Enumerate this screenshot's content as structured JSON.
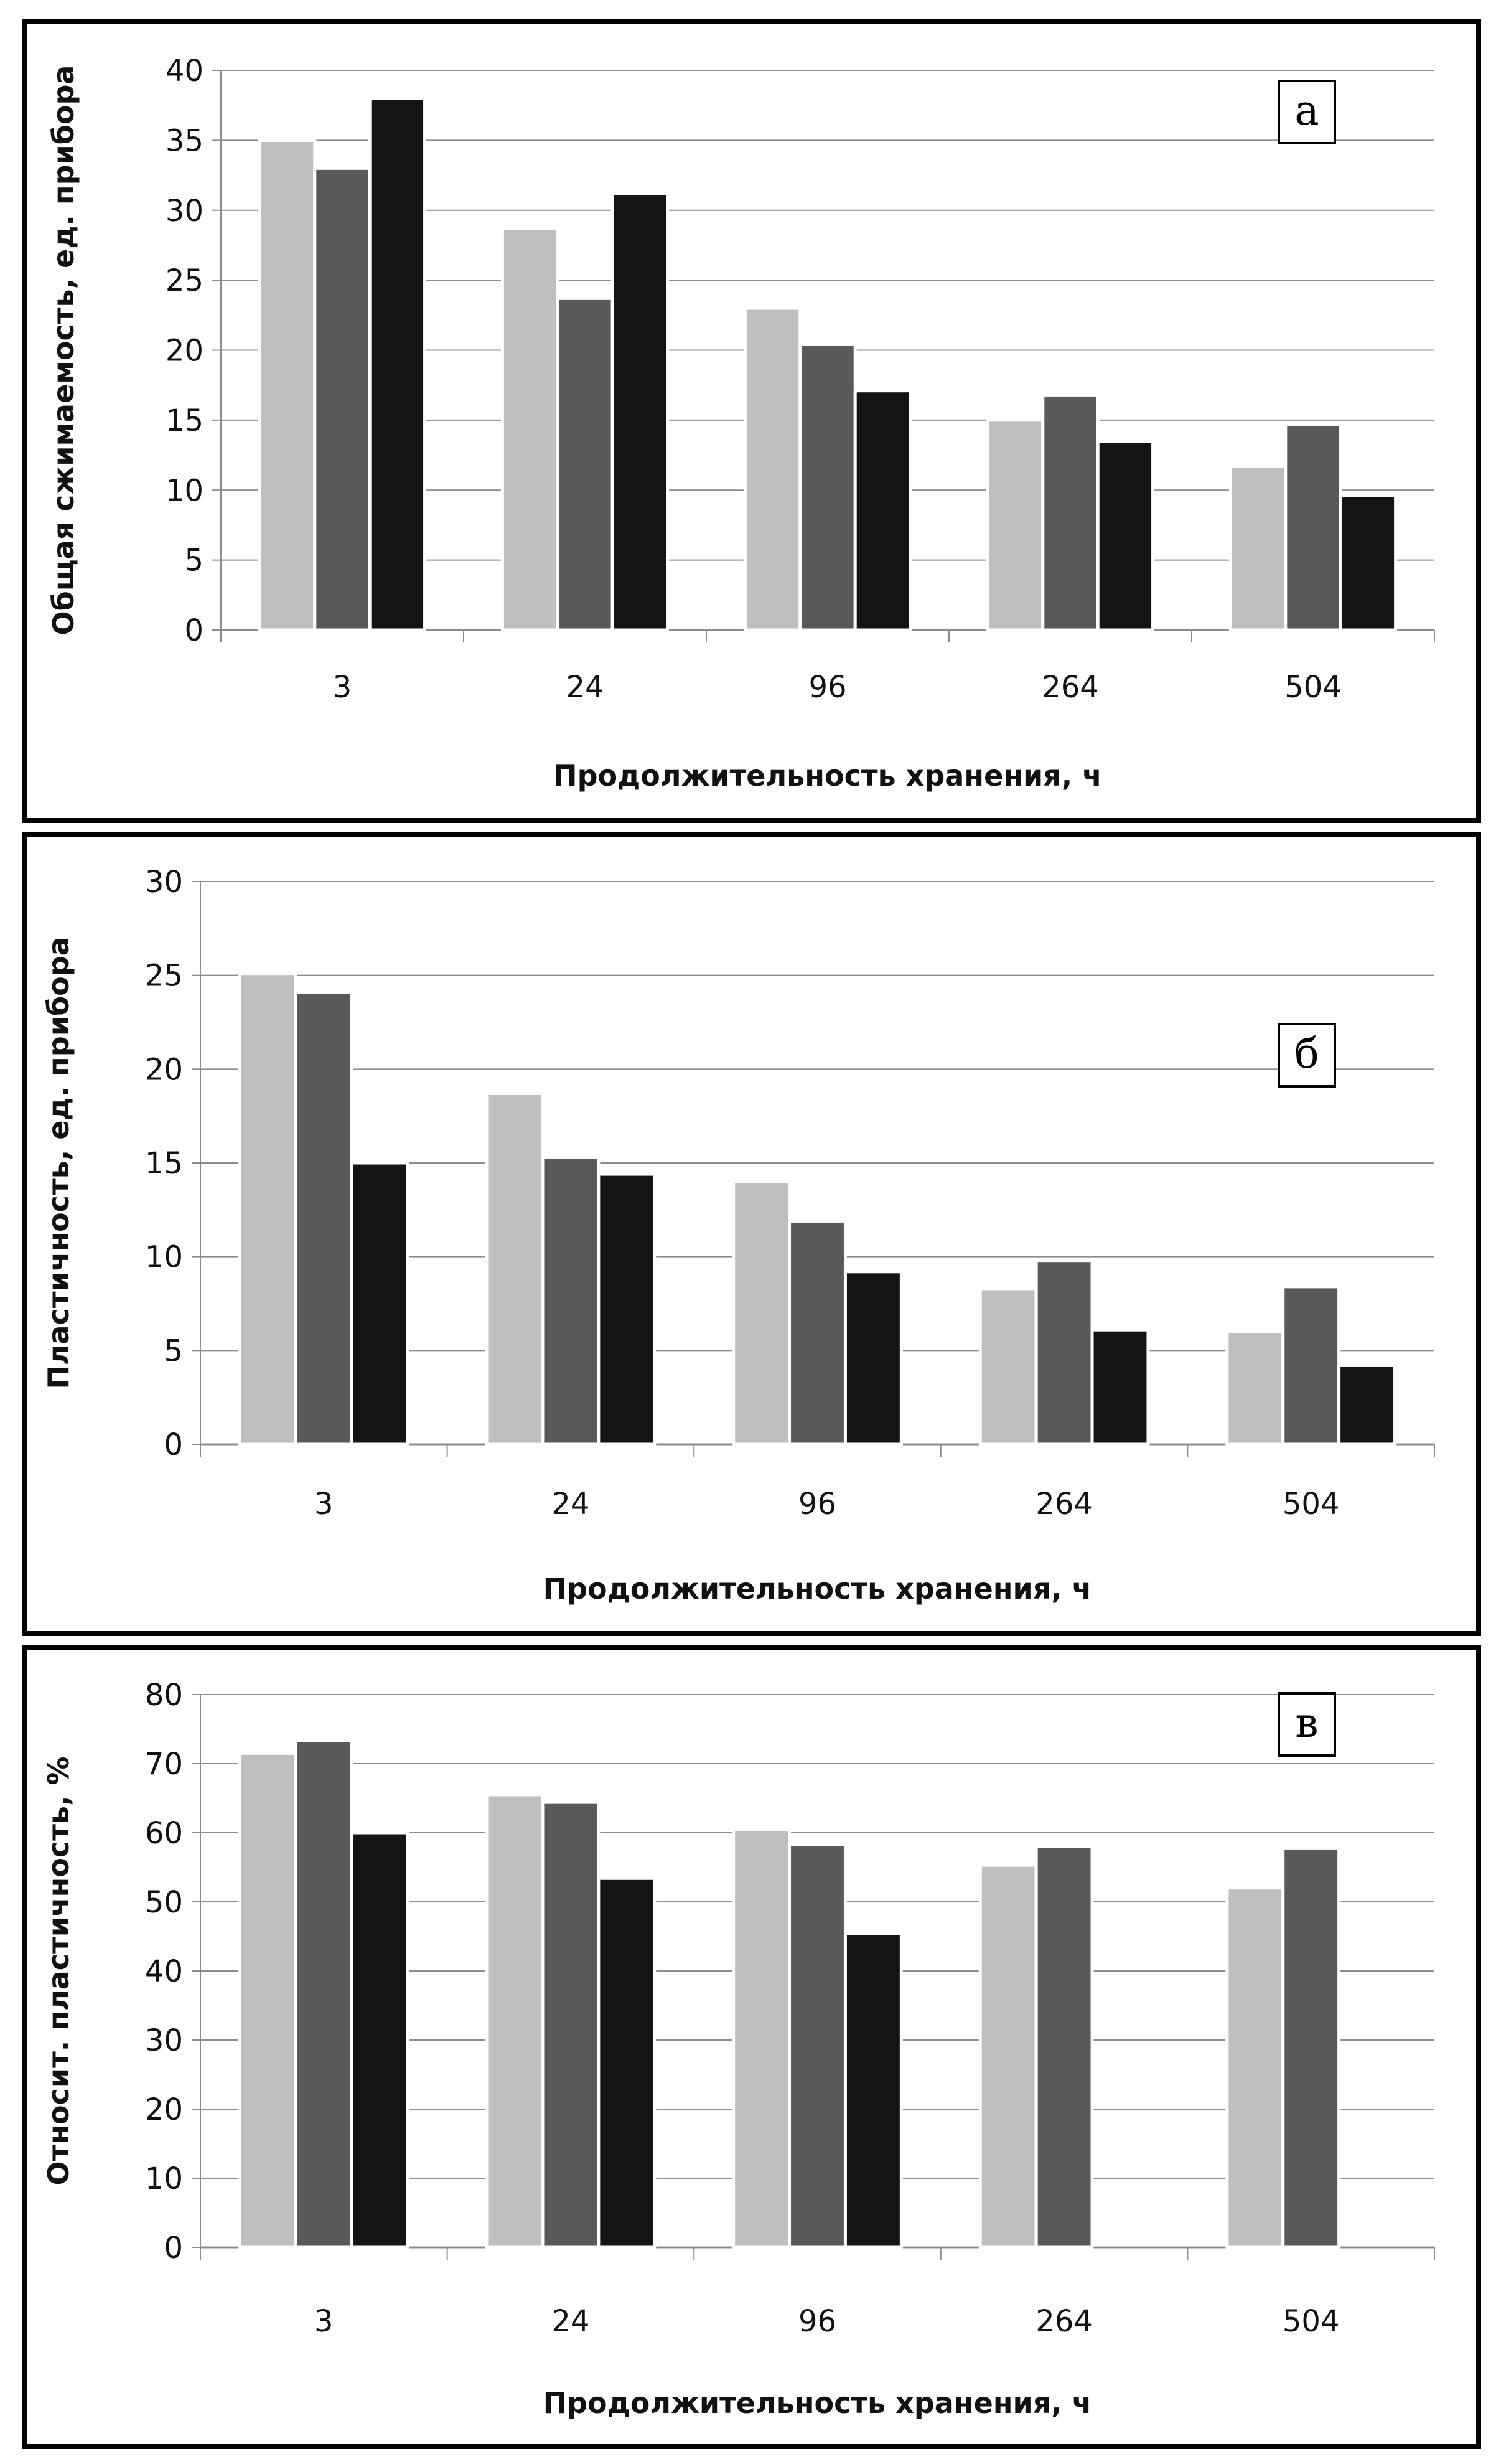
{
  "colors": {
    "series_light": "#bfbfbf",
    "series_mid": "#595959",
    "series_dark": "#141414",
    "gridline": "#8c8c8c",
    "axis": "#8c8c8c",
    "bar_edge": "#ffffff"
  },
  "chart_data": [
    {
      "type": "bar",
      "panel_label": "а",
      "categories": [
        "3",
        "24",
        "96",
        "264",
        "504"
      ],
      "series": [
        {
          "values": [
            35,
            28.7,
            23,
            15,
            11.7
          ]
        },
        {
          "values": [
            33,
            23.7,
            20.4,
            16.8,
            14.7
          ]
        },
        {
          "values": [
            38,
            31.2,
            17.1,
            13.5,
            9.6
          ]
        }
      ],
      "xlabel": "Продолжительность хранения, ч",
      "ylabel": "Общая сжимаемость, ед. прибора",
      "ylim": [
        0,
        40
      ],
      "yticks": [
        "0",
        "5",
        "10",
        "15",
        "20",
        "25",
        "30",
        "35",
        "40"
      ],
      "grid": true
    },
    {
      "type": "bar",
      "panel_label": "б",
      "categories": [
        "3",
        "24",
        "96",
        "264",
        "504"
      ],
      "series": [
        {
          "values": [
            25.1,
            18.7,
            14,
            8.3,
            6
          ]
        },
        {
          "values": [
            24.1,
            15.3,
            11.9,
            9.8,
            8.4
          ]
        },
        {
          "values": [
            15,
            14.4,
            9.2,
            6.1,
            4.2
          ]
        }
      ],
      "xlabel": "Продолжительность хранения, ч",
      "ylabel": "Пластичность, ед. прибора",
      "ylim": [
        0,
        30
      ],
      "yticks": [
        "0",
        "5",
        "10",
        "15",
        "20",
        "25",
        "30"
      ],
      "grid": true
    },
    {
      "type": "bar",
      "panel_label": "в",
      "categories": [
        "3",
        "24",
        "96",
        "264",
        "504"
      ],
      "series": [
        {
          "values": [
            71.5,
            65.5,
            60.5,
            55.3,
            52
          ]
        },
        {
          "values": [
            73.3,
            64.4,
            58.3,
            58,
            57.8
          ]
        },
        {
          "values": [
            60,
            53.4,
            45.4,
            null,
            null
          ]
        }
      ],
      "xlabel": "Продолжительность хранения, ч",
      "ylabel": "Относит. пластичность, %",
      "ylim": [
        0,
        80
      ],
      "yticks": [
        "0",
        "10",
        "20",
        "30",
        "40",
        "50",
        "60",
        "70",
        "80"
      ],
      "grid": true
    }
  ]
}
